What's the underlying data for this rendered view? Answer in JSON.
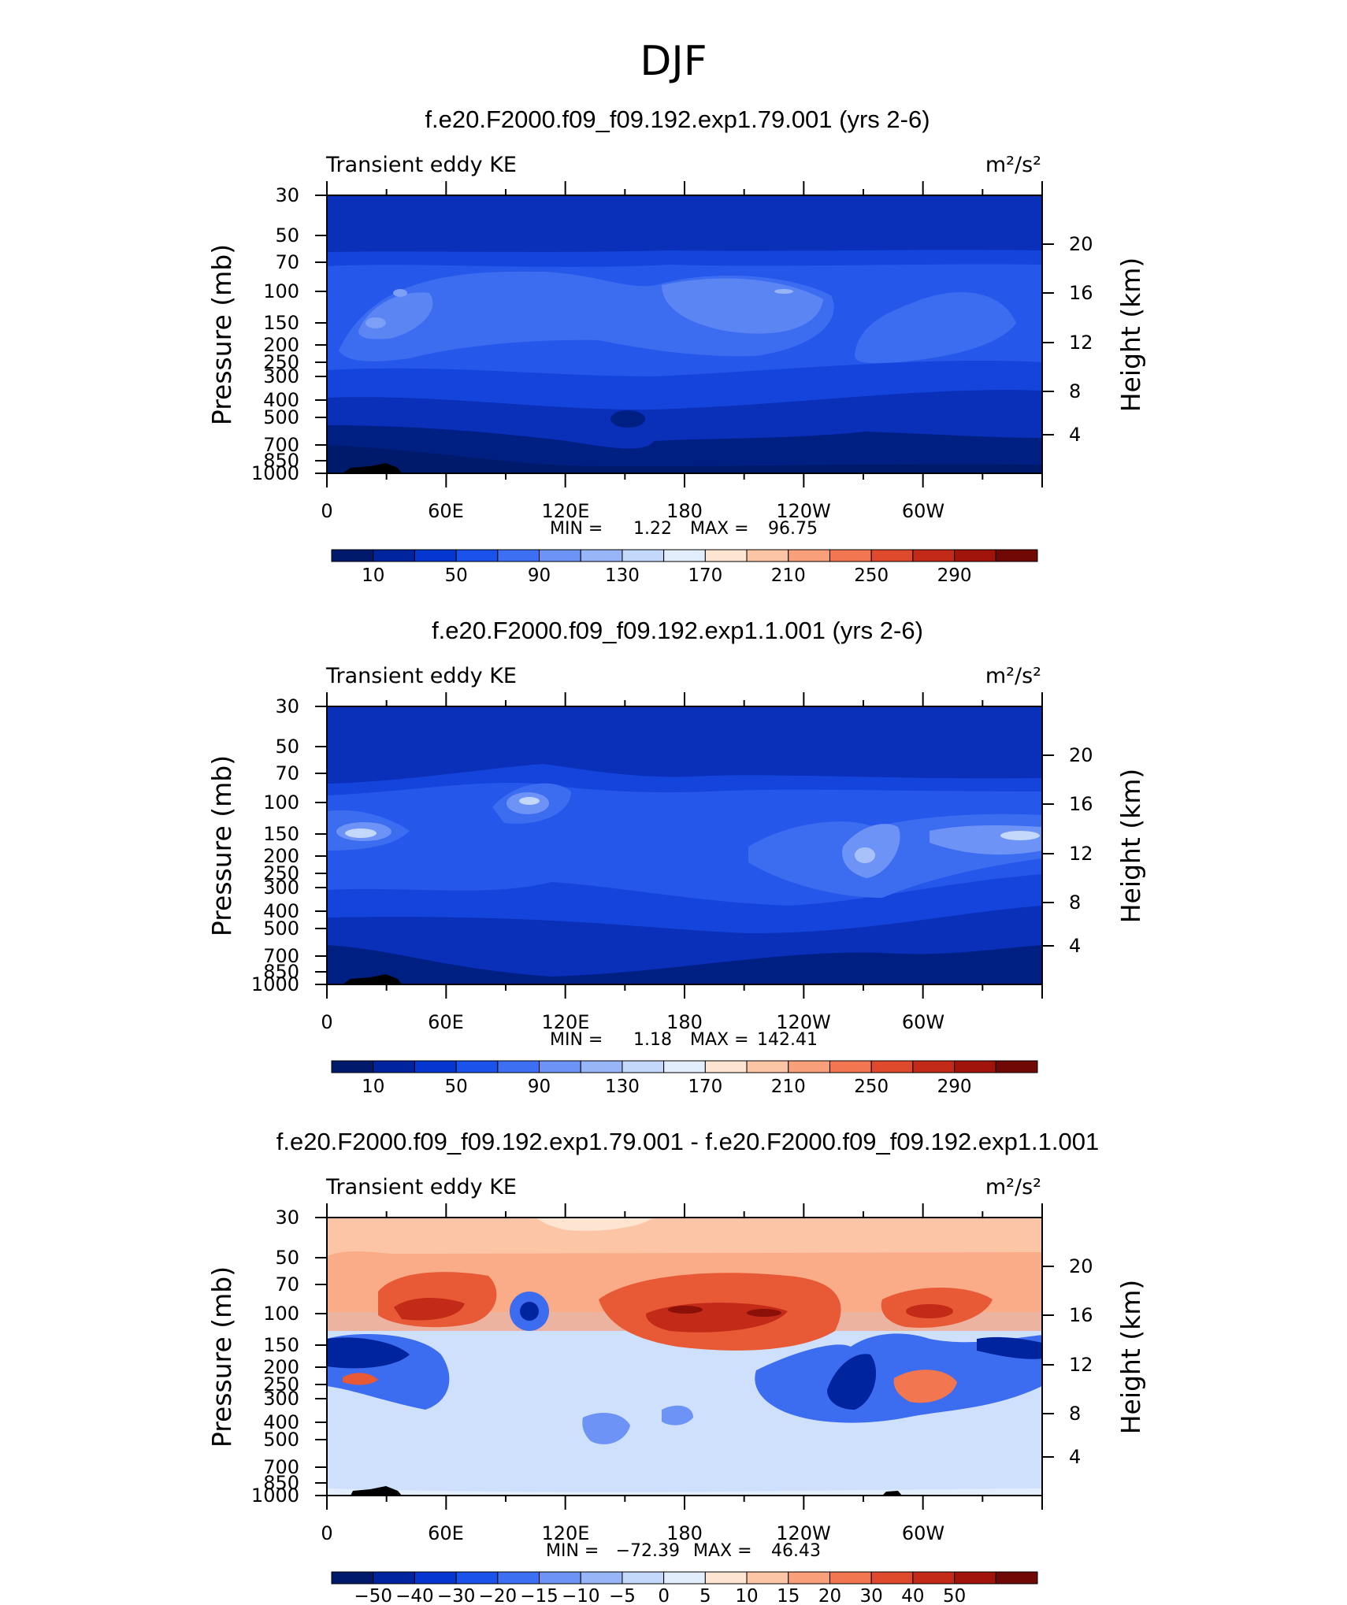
{
  "figure": {
    "suptitle": "DJF"
  },
  "chart_data": [
    {
      "type": "heatmap",
      "title": "f.e20.F2000.f09_f09.192.exp1.79.001 (yrs 2-6)",
      "left_label": "Transient eddy KE",
      "right_label": "m²/s²",
      "ylabel_left": "Pressure (mb)",
      "ylabel_right": "Height (km)",
      "x_ticks": [
        "0",
        "60E",
        "120E",
        "180",
        "120W",
        "60W"
      ],
      "y_ticks_pressure": [
        "30",
        "50",
        "70",
        "100",
        "150",
        "200",
        "250",
        "300",
        "400",
        "500",
        "700",
        "850",
        "1000"
      ],
      "y_ticks_height": [
        "20",
        "16",
        "12",
        "8",
        "4"
      ],
      "stats": {
        "min_label": "MIN =",
        "min": "1.22",
        "max_label": "MAX =",
        "max": "96.75"
      },
      "colorbar_labels": [
        "10",
        "50",
        "90",
        "130",
        "170",
        "210",
        "250",
        "290"
      ]
    },
    {
      "type": "heatmap",
      "title": "f.e20.F2000.f09_f09.192.exp1.1.001 (yrs 2-6)",
      "left_label": "Transient eddy KE",
      "right_label": "m²/s²",
      "ylabel_left": "Pressure (mb)",
      "ylabel_right": "Height (km)",
      "x_ticks": [
        "0",
        "60E",
        "120E",
        "180",
        "120W",
        "60W"
      ],
      "y_ticks_pressure": [
        "30",
        "50",
        "70",
        "100",
        "150",
        "200",
        "250",
        "300",
        "400",
        "500",
        "700",
        "850",
        "1000"
      ],
      "y_ticks_height": [
        "20",
        "16",
        "12",
        "8",
        "4"
      ],
      "stats": {
        "min_label": "MIN =",
        "min": "1.18",
        "max_label": "MAX =",
        "max": "142.41"
      },
      "colorbar_labels": [
        "10",
        "50",
        "90",
        "130",
        "170",
        "210",
        "250",
        "290"
      ]
    },
    {
      "type": "heatmap",
      "title": "f.e20.F2000.f09_f09.192.exp1.79.001 - f.e20.F2000.f09_f09.192.exp1.1.001",
      "left_label": "Transient eddy KE",
      "right_label": "m²/s²",
      "ylabel_left": "Pressure (mb)",
      "ylabel_right": "Height (km)",
      "x_ticks": [
        "0",
        "60E",
        "120E",
        "180",
        "120W",
        "60W"
      ],
      "y_ticks_pressure": [
        "30",
        "50",
        "70",
        "100",
        "150",
        "200",
        "250",
        "300",
        "400",
        "500",
        "700",
        "850",
        "1000"
      ],
      "y_ticks_height": [
        "20",
        "16",
        "12",
        "8",
        "4"
      ],
      "stats": {
        "min_label": "MIN =",
        "min": "−72.39",
        "max_label": "MAX =",
        "max": "46.43"
      },
      "colorbar_labels": [
        "−50",
        "−40",
        "−30",
        "−20",
        "−15",
        "−10",
        "−5",
        "0",
        "5",
        "10",
        "15",
        "20",
        "30",
        "40",
        "50"
      ]
    }
  ],
  "colors": {
    "abs_palette": [
      "#001a6b",
      "#00239e",
      "#0537d0",
      "#1a52ec",
      "#3d6ff2",
      "#6c93f5",
      "#98b5f8",
      "#c4d8fb",
      "#e3eefd",
      "#fde5d2",
      "#fcc6a6",
      "#f9a07a",
      "#f27650",
      "#e04a2c",
      "#c42a18",
      "#a0140c",
      "#700805"
    ],
    "diff_palette": [
      "#001a6b",
      "#00239e",
      "#0537d0",
      "#1a52ec",
      "#3d6ff2",
      "#6c93f5",
      "#98b5f8",
      "#c4d8fb",
      "#e3eefd",
      "#fde5d2",
      "#fcc6a6",
      "#f9a07a",
      "#f27650",
      "#e04a2c",
      "#c42a18",
      "#a0140c",
      "#700805"
    ]
  }
}
